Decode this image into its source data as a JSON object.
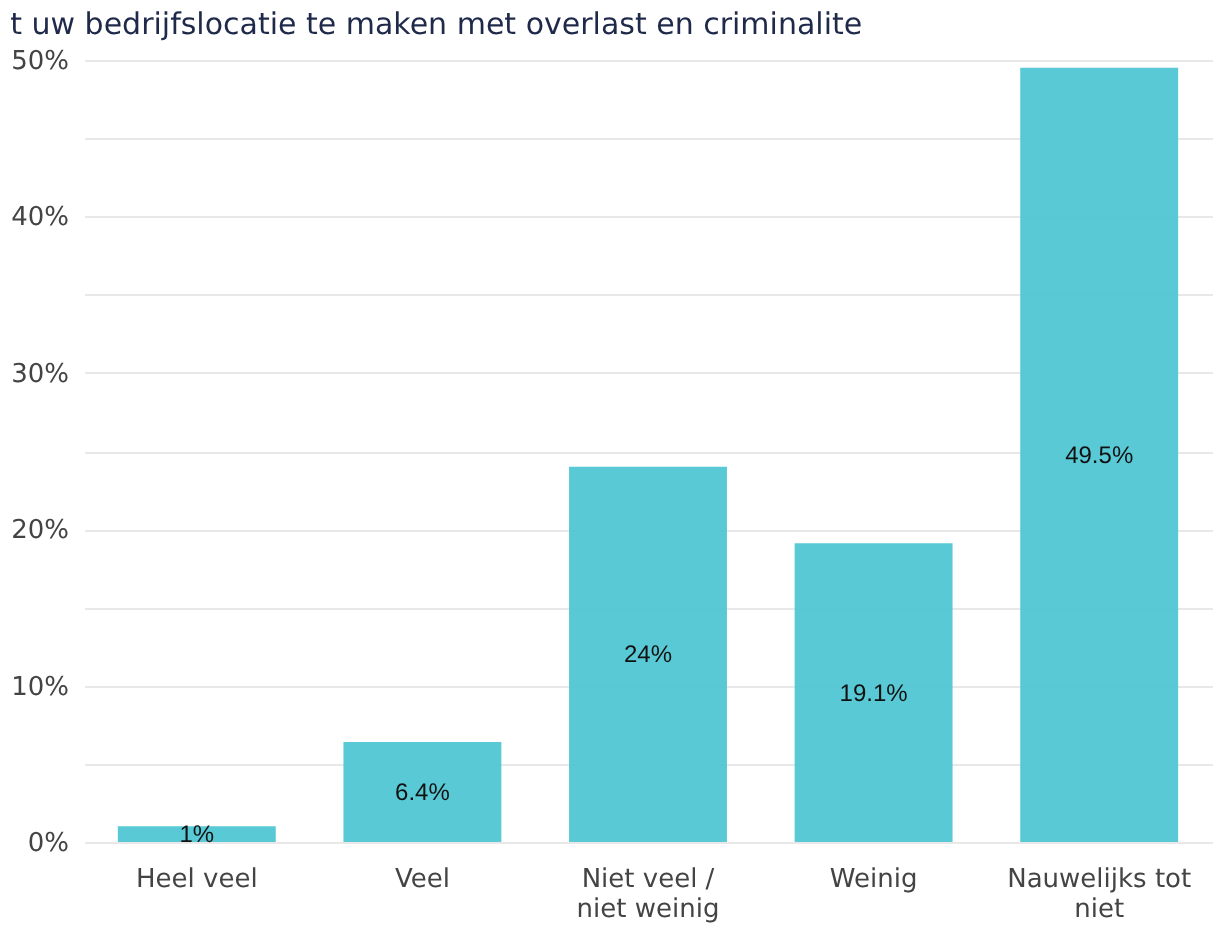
{
  "chart_data": {
    "type": "bar",
    "title": "t uw bedrijfslocatie te maken met overlast en criminalite",
    "categories": [
      "Heel veel",
      "Veel",
      "Niet veel / niet weinig",
      "Weinig",
      "Nauwelijks tot niet"
    ],
    "values": [
      1,
      6.4,
      24,
      19.1,
      49.5
    ],
    "value_labels": [
      "1%",
      "6.4%",
      "24%",
      "19.1%",
      "49.5%"
    ],
    "color": "#4fc6d3",
    "ylim": [
      0,
      50
    ],
    "yticks": [
      {
        "value": 0,
        "label": "0%"
      },
      {
        "value": 5,
        "label": null
      },
      {
        "value": 10,
        "label": "10%"
      },
      {
        "value": 15,
        "label": null
      },
      {
        "value": 20,
        "label": "20%"
      },
      {
        "value": 25,
        "label": null
      },
      {
        "value": 30,
        "label": "30%"
      },
      {
        "value": 35,
        "label": null
      },
      {
        "value": 40,
        "label": "40%"
      },
      {
        "value": 45,
        "label": null
      },
      {
        "value": 50,
        "label": "50%"
      }
    ],
    "grid": "y"
  }
}
